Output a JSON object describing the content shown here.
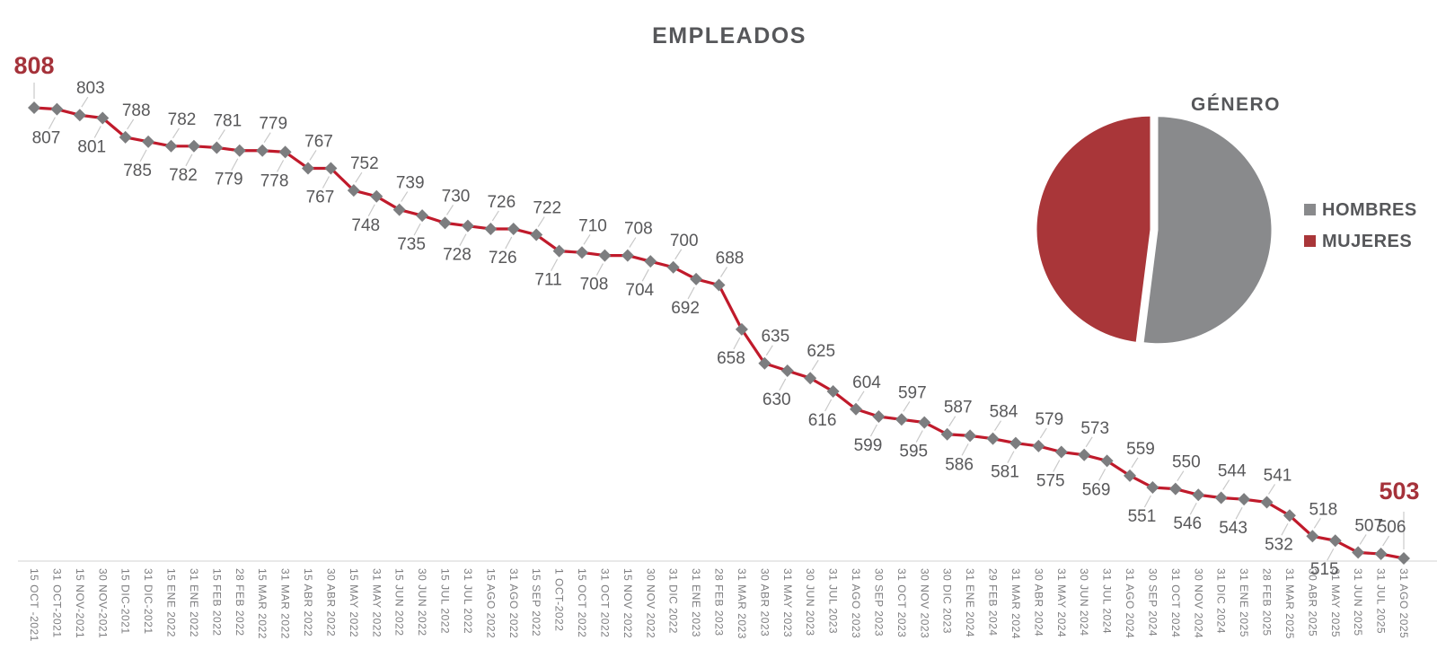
{
  "colors": {
    "line_red": "#c01a2b",
    "marker_gray": "#7c7d7f",
    "accent_red": "#a5323a",
    "pie_gray": "#898a8c",
    "pie_red": "#a93639",
    "title_gray": "#56575a",
    "value_label_gray": "#58585a",
    "axis_label_gray": "#7e7e80",
    "leader_gray": "#c9c9c9",
    "axis_line_gray": "#dcdcdc"
  },
  "chart_data": [
    {
      "type": "line",
      "title": "EMPLEADOS",
      "xlabel": "",
      "ylabel": "",
      "ylim": [
        503,
        808
      ],
      "grid": false,
      "legend_position": "none",
      "x": [
        "15 OCT -2021",
        "31 OCT-2021",
        "15 NOV-2021",
        "30 NOV-2021",
        "15 DIC-2021",
        "31 DIC-2021",
        "15 ENE 2022",
        "31 ENE 2022",
        "15 FEB 2022",
        "28 FEB 2022",
        "15 MAR 2022",
        "31 MAR 2022",
        "15 ABR 2022",
        "30 ABR 2022",
        "15 MAY 2022",
        "31 MAY 2022",
        "15 JUN 2022",
        "30 JUN 2022",
        "15 JUL 2022",
        "31 JUL 2022",
        "15 AGO 2022",
        "31 AGO 2022",
        "15 SEP 2022",
        "1 OCT-2022",
        "15 OCT 2022",
        "31 OCT 2022",
        "15 NOV 2022",
        "30 NOV 2022",
        "31 DIC 2022",
        "31 ENE 2023",
        "28 FEB 2023",
        "31 MAR 2023",
        "30 ABR 2023",
        "31 MAY 2023",
        "30 JUN 2023",
        "31 JUL 2023",
        "31 AGO 2023",
        "30 SEP 2023",
        "31 OCT 2023",
        "30 NOV 2023",
        "30 DIC 2023",
        "31 ENE 2024",
        "29 FEB 2024",
        "31 MAR 2024",
        "30 ABR 2024",
        "31 MAY 2024",
        "30 JUN 2024",
        "31 JUL 2024",
        "31 AGO 2024",
        "30 SEP 2024",
        "31 OCT 2024",
        "30 NOV 2024",
        "31 DIC 2024",
        "31 ENE 2025",
        "28 FEB 2025",
        "31 MAR 2025",
        "30 ABR 2025",
        "31 MAY 2025",
        "31 JUN 2025",
        "31 JUL 2025",
        "31 AGO 2025"
      ],
      "series": [
        {
          "name": "EMPLEADOS",
          "color": "#c01a2b",
          "marker": "diamond",
          "marker_color": "#7c7d7f",
          "values": [
            808,
            807,
            803,
            801,
            788,
            785,
            782,
            782,
            781,
            779,
            779,
            778,
            767,
            767,
            752,
            748,
            739,
            735,
            730,
            728,
            726,
            726,
            722,
            711,
            710,
            708,
            708,
            704,
            700,
            692,
            688,
            658,
            635,
            630,
            625,
            616,
            604,
            599,
            597,
            595,
            587,
            586,
            584,
            581,
            579,
            575,
            573,
            569,
            559,
            551,
            550,
            546,
            544,
            543,
            541,
            532,
            518,
            515,
            507,
            506,
            503
          ]
        }
      ],
      "data_labels": true,
      "label_side_pattern": "alternate-above-first",
      "label_side_overrides": {
        "59": "above"
      },
      "annotations": [
        {
          "index": 0,
          "text": "808",
          "style": "highlight-red-bold"
        },
        {
          "index": 60,
          "text": "503",
          "style": "highlight-red-bold"
        }
      ]
    },
    {
      "type": "pie",
      "title": "GÉNERO",
      "labels": [
        "HOMBRES",
        "MUJERES"
      ],
      "values": [
        52,
        48
      ],
      "values_note": "percentages estimated from pie geometry (no numeric labels shown)",
      "colors": [
        "#898a8c",
        "#a93639"
      ],
      "legend_position": "right",
      "start_angle": "top",
      "direction": "clockwise",
      "slice_gap": true
    }
  ]
}
